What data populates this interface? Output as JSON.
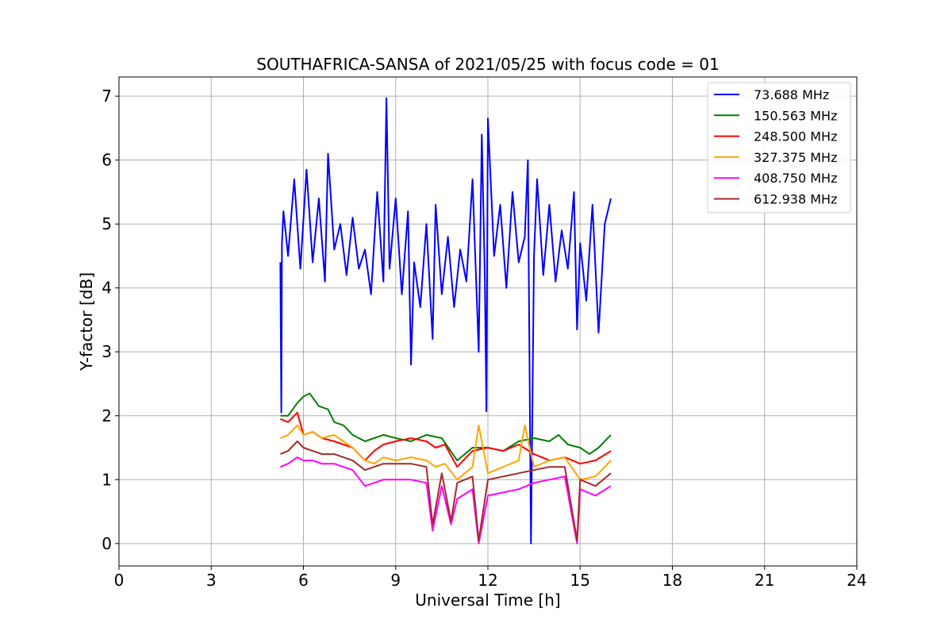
{
  "chart_data": {
    "type": "line",
    "title": "SOUTHAFRICA-SANSA of 2021/05/25 with focus code = 01",
    "xlabel": "Universal Time [h]",
    "ylabel": "Y-factor [dB]",
    "xlim": [
      0,
      24
    ],
    "ylim": [
      -0.35,
      7.3
    ],
    "xticks": [
      0,
      3,
      6,
      9,
      12,
      15,
      18,
      21,
      24
    ],
    "yticks": [
      0,
      1,
      2,
      3,
      4,
      5,
      6,
      7
    ],
    "grid": true,
    "legend_position": "top-right",
    "series": [
      {
        "name": " 73.688 MHz",
        "color": "#0000ff",
        "x": [
          5.25,
          5.28,
          5.3,
          5.35,
          5.5,
          5.7,
          5.9,
          6.1,
          6.3,
          6.5,
          6.7,
          6.8,
          7.0,
          7.2,
          7.4,
          7.6,
          7.8,
          8.0,
          8.2,
          8.4,
          8.6,
          8.7,
          8.8,
          9.0,
          9.2,
          9.4,
          9.5,
          9.6,
          9.8,
          10.0,
          10.2,
          10.3,
          10.5,
          10.7,
          10.9,
          11.1,
          11.3,
          11.5,
          11.7,
          11.8,
          11.9,
          11.95,
          12.0,
          12.2,
          12.4,
          12.6,
          12.8,
          13.0,
          13.2,
          13.3,
          13.4,
          13.5,
          13.6,
          13.8,
          14.0,
          14.2,
          14.4,
          14.6,
          14.8,
          14.9,
          15.0,
          15.2,
          15.4,
          15.6,
          15.8,
          16.0
        ],
        "y": [
          4.4,
          2.05,
          4.7,
          5.2,
          4.5,
          5.7,
          4.3,
          5.85,
          4.4,
          5.4,
          4.1,
          6.1,
          4.6,
          5.0,
          4.2,
          5.1,
          4.3,
          4.6,
          3.9,
          5.5,
          4.1,
          6.97,
          4.3,
          5.4,
          3.9,
          5.2,
          2.8,
          4.4,
          3.7,
          5.0,
          3.2,
          5.3,
          3.9,
          4.8,
          3.7,
          4.6,
          4.1,
          5.7,
          3.0,
          6.4,
          4.2,
          2.07,
          6.65,
          4.5,
          5.3,
          4.0,
          5.5,
          4.4,
          4.8,
          6.0,
          0.0,
          4.5,
          5.7,
          4.2,
          5.3,
          4.1,
          4.9,
          4.3,
          5.5,
          3.35,
          4.7,
          3.8,
          5.3,
          3.3,
          5.0,
          5.4
        ]
      },
      {
        "name": "150.563 MHz",
        "color": "#008000",
        "x": [
          5.25,
          5.5,
          5.8,
          6.0,
          6.2,
          6.5,
          6.8,
          7.0,
          7.3,
          7.6,
          8.0,
          8.3,
          8.6,
          9.0,
          9.5,
          10.0,
          10.5,
          11.0,
          11.5,
          12.0,
          12.5,
          13.0,
          13.5,
          14.0,
          14.3,
          14.6,
          15.0,
          15.3,
          15.6,
          16.0
        ],
        "y": [
          2.0,
          2.0,
          2.2,
          2.3,
          2.35,
          2.15,
          2.1,
          1.9,
          1.85,
          1.7,
          1.6,
          1.65,
          1.7,
          1.65,
          1.6,
          1.7,
          1.65,
          1.3,
          1.5,
          1.5,
          1.45,
          1.6,
          1.65,
          1.6,
          1.7,
          1.55,
          1.5,
          1.4,
          1.5,
          1.7
        ]
      },
      {
        "name": "248.500 MHz",
        "color": "#ff0000",
        "x": [
          5.25,
          5.5,
          5.8,
          6.0,
          6.3,
          6.6,
          7.0,
          7.3,
          7.6,
          8.0,
          8.3,
          8.6,
          9.0,
          9.5,
          10.0,
          10.3,
          10.6,
          11.0,
          11.5,
          12.0,
          12.5,
          13.0,
          13.5,
          14.0,
          14.5,
          15.0,
          15.5,
          16.0
        ],
        "y": [
          1.95,
          1.9,
          2.05,
          1.7,
          1.75,
          1.65,
          1.6,
          1.55,
          1.5,
          1.3,
          1.45,
          1.55,
          1.6,
          1.65,
          1.6,
          1.5,
          1.55,
          1.2,
          1.45,
          1.5,
          1.45,
          1.55,
          1.4,
          1.3,
          1.35,
          1.25,
          1.3,
          1.45
        ]
      },
      {
        "name": "327.375 MHz",
        "color": "#ffa500",
        "x": [
          5.25,
          5.5,
          5.8,
          6.0,
          6.3,
          6.6,
          7.0,
          7.3,
          7.6,
          8.0,
          8.3,
          8.6,
          9.0,
          9.5,
          10.0,
          10.3,
          10.6,
          11.0,
          11.5,
          11.7,
          12.0,
          12.5,
          13.0,
          13.2,
          13.5,
          14.0,
          14.5,
          15.0,
          15.5,
          16.0
        ],
        "y": [
          1.65,
          1.7,
          1.85,
          1.7,
          1.75,
          1.65,
          1.7,
          1.6,
          1.5,
          1.3,
          1.25,
          1.35,
          1.3,
          1.35,
          1.3,
          1.2,
          1.25,
          1.0,
          1.2,
          1.85,
          1.1,
          1.2,
          1.3,
          1.85,
          1.2,
          1.3,
          1.35,
          1.0,
          1.05,
          1.3
        ]
      },
      {
        "name": "408.750 MHz",
        "color": "#ff00ff",
        "x": [
          5.25,
          5.5,
          5.8,
          6.0,
          6.3,
          6.6,
          7.0,
          7.3,
          7.6,
          8.0,
          8.3,
          8.6,
          9.0,
          9.5,
          10.0,
          10.2,
          10.5,
          10.8,
          11.0,
          11.5,
          11.7,
          12.0,
          12.5,
          13.0,
          13.5,
          14.0,
          14.5,
          14.9,
          15.0,
          15.5,
          16.0
        ],
        "y": [
          1.2,
          1.25,
          1.35,
          1.3,
          1.3,
          1.25,
          1.25,
          1.2,
          1.15,
          0.9,
          0.95,
          1.0,
          1.0,
          1.0,
          0.95,
          0.2,
          0.9,
          0.3,
          0.7,
          0.85,
          0.0,
          0.75,
          0.8,
          0.85,
          0.95,
          1.0,
          1.05,
          0.0,
          0.85,
          0.75,
          0.9
        ]
      },
      {
        "name": "612.938 MHz",
        "color": "#a52a2a",
        "x": [
          5.25,
          5.5,
          5.8,
          6.0,
          6.3,
          6.6,
          7.0,
          7.3,
          7.6,
          8.0,
          8.3,
          8.6,
          9.0,
          9.5,
          10.0,
          10.2,
          10.5,
          10.8,
          11.0,
          11.5,
          11.7,
          12.0,
          12.5,
          13.0,
          13.5,
          14.0,
          14.5,
          14.9,
          15.0,
          15.5,
          16.0
        ],
        "y": [
          1.4,
          1.45,
          1.6,
          1.5,
          1.45,
          1.4,
          1.4,
          1.35,
          1.3,
          1.15,
          1.2,
          1.25,
          1.25,
          1.25,
          1.2,
          0.3,
          1.1,
          0.35,
          0.95,
          1.05,
          0.05,
          1.0,
          1.05,
          1.1,
          1.15,
          1.2,
          1.2,
          0.05,
          1.0,
          0.9,
          1.1
        ]
      }
    ]
  }
}
